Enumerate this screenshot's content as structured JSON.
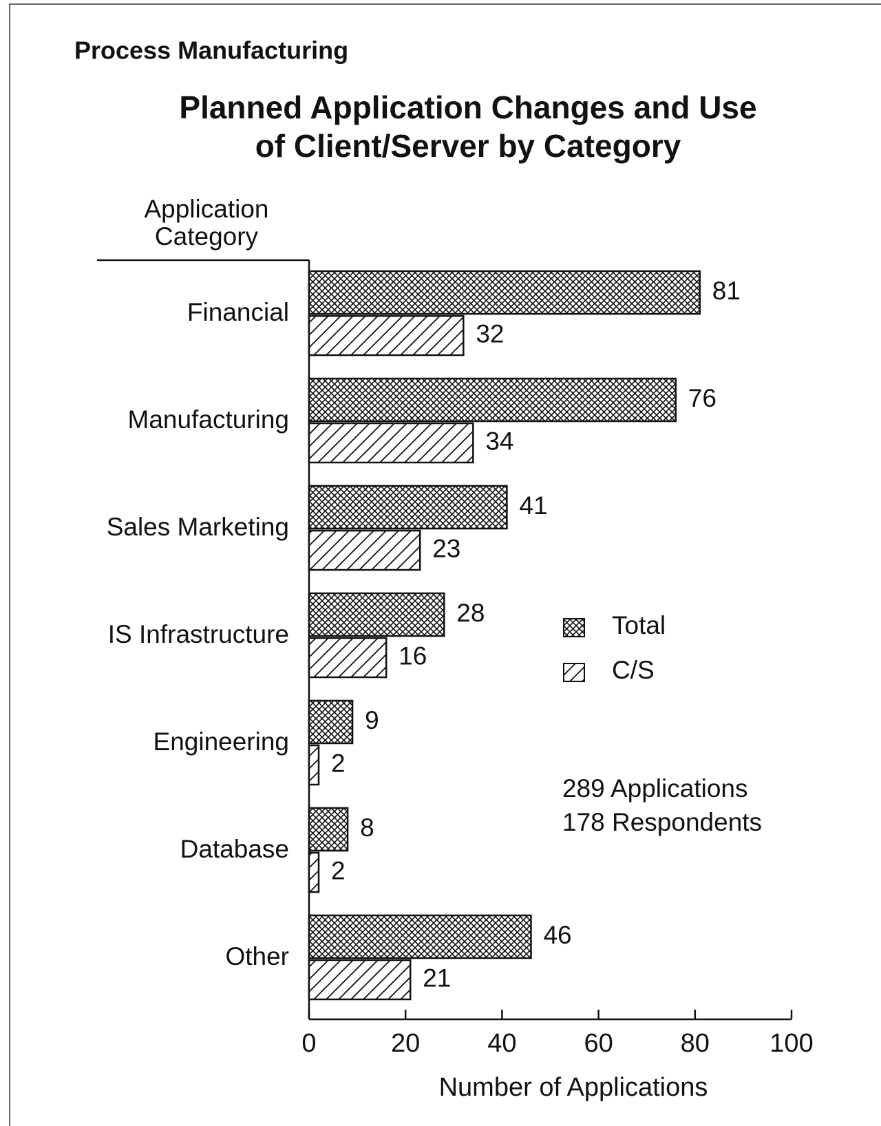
{
  "chart_data": {
    "type": "bar",
    "orientation": "horizontal",
    "header": "Process Manufacturing",
    "title": "Planned Application Changes and Use of Client/Server by Category",
    "y_label": "Application Category",
    "x_label": "Number of Applications",
    "categories": [
      "Financial",
      "Manufacturing",
      "Sales Marketing",
      "IS Infrastructure",
      "Engineering",
      "Database",
      "Other"
    ],
    "series": [
      {
        "name": "Total",
        "color": "#111111",
        "pattern": "crosshatch",
        "values": [
          81,
          76,
          41,
          28,
          9,
          8,
          46
        ]
      },
      {
        "name": "C/S",
        "color": "#111111",
        "pattern": "diagonal",
        "values": [
          32,
          34,
          23,
          16,
          2,
          2,
          21
        ]
      }
    ],
    "xlim": [
      0,
      100
    ],
    "xticks": [
      0,
      20,
      40,
      60,
      80,
      100
    ],
    "annotations": [
      "289 Applications",
      "178 Respondents"
    ],
    "legend": "right"
  }
}
